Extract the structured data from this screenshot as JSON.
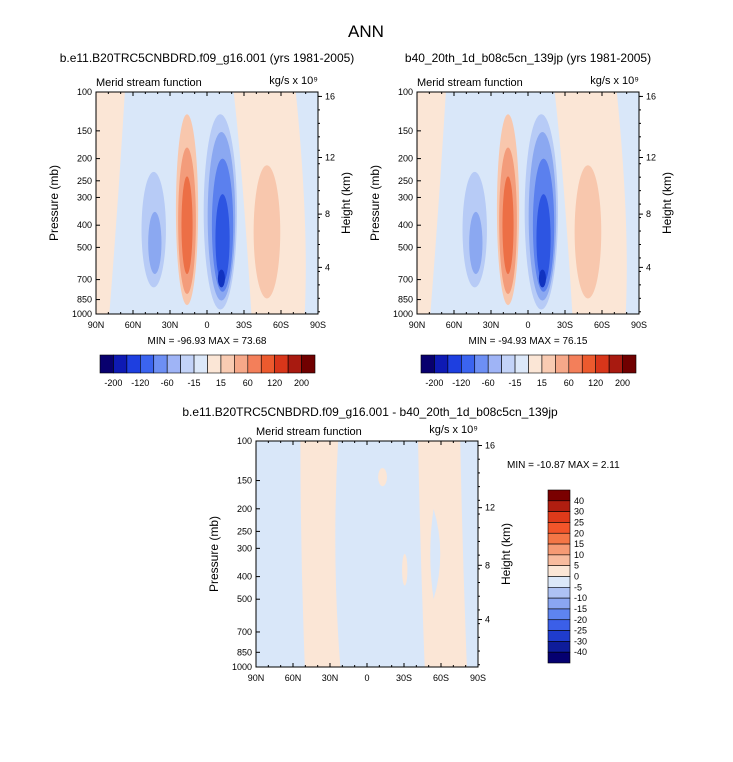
{
  "figure": {
    "title": "ANN"
  },
  "chart_data": [
    {
      "type": "heatmap",
      "title": "b.e11.B20TRC5CNBDRD.f09_g16.001 (yrs 1981-2005)",
      "subtitle_left": "Merid stream function",
      "units": "kg/s x 10⁹",
      "ylabel": "Pressure (mb)",
      "ylabel_right": "Height (km)",
      "x_ticks": [
        "90N",
        "60N",
        "30N",
        "0",
        "30S",
        "60S",
        "90S"
      ],
      "y_ticks": [
        "100",
        "150",
        "200",
        "250",
        "300",
        "400",
        "500",
        "700",
        "850",
        "1000"
      ],
      "y2_ticks": [
        "16",
        "12",
        "8",
        "4"
      ],
      "ylim": [
        1000,
        100
      ],
      "stats": "MIN = -96.93  MAX =  73.68",
      "min": -96.93,
      "max": 73.68,
      "levels": [
        -200,
        -120,
        -60,
        -15,
        15,
        60,
        120,
        200
      ],
      "colorbar": {
        "labels": [
          "-200",
          "-120",
          "-60",
          "-15",
          "15",
          "60",
          "120",
          "200"
        ],
        "colors": [
          "#08006e",
          "#0e1ab4",
          "#1e3fe0",
          "#3b64f0",
          "#6d8ff4",
          "#9fb4f6",
          "#c3d3f8",
          "#dce8f9",
          "#fbe6d6",
          "#f9cbb2",
          "#f6a889",
          "#f37f5a",
          "#ec5a2e",
          "#d8361a",
          "#a81a10",
          "#700000"
        ]
      }
    },
    {
      "type": "heatmap",
      "title": "b40_20th_1d_b08c5cn_139jp (yrs 1981-2005)",
      "subtitle_left": "Merid stream function",
      "units": "kg/s x 10⁹",
      "ylabel": "Pressure (mb)",
      "ylabel_right": "Height (km)",
      "x_ticks": [
        "90N",
        "60N",
        "30N",
        "0",
        "30S",
        "60S",
        "90S"
      ],
      "y_ticks": [
        "100",
        "150",
        "200",
        "250",
        "300",
        "400",
        "500",
        "700",
        "850",
        "1000"
      ],
      "y2_ticks": [
        "16",
        "12",
        "8",
        "4"
      ],
      "ylim": [
        1000,
        100
      ],
      "stats": "MIN = -94.93  MAX =  76.15",
      "min": -94.93,
      "max": 76.15,
      "levels": [
        -200,
        -120,
        -60,
        -15,
        15,
        60,
        120,
        200
      ],
      "colorbar": {
        "labels": [
          "-200",
          "-120",
          "-60",
          "-15",
          "15",
          "60",
          "120",
          "200"
        ],
        "colors": [
          "#08006e",
          "#0e1ab4",
          "#1e3fe0",
          "#3b64f0",
          "#6d8ff4",
          "#9fb4f6",
          "#c3d3f8",
          "#dce8f9",
          "#fbe6d6",
          "#f9cbb2",
          "#f6a889",
          "#f37f5a",
          "#ec5a2e",
          "#d8361a",
          "#a81a10",
          "#700000"
        ]
      }
    },
    {
      "type": "heatmap",
      "title": "b.e11.B20TRC5CNBDRD.f09_g16.001 - b40_20th_1d_b08c5cn_139jp",
      "subtitle_left": "Merid stream function",
      "units": "kg/s x 10⁹",
      "ylabel": "Pressure (mb)",
      "ylabel_right": "Height (km)",
      "x_ticks": [
        "90N",
        "60N",
        "30N",
        "0",
        "30S",
        "60S",
        "90S"
      ],
      "y_ticks": [
        "100",
        "150",
        "200",
        "250",
        "300",
        "400",
        "500",
        "700",
        "850",
        "1000"
      ],
      "y2_ticks": [
        "16",
        "12",
        "8",
        "4"
      ],
      "ylim": [
        1000,
        100
      ],
      "stats": "MIN = -10.87  MAX =   2.11",
      "min": -10.87,
      "max": 2.11,
      "levels": [
        -40,
        -30,
        -25,
        -20,
        -15,
        -10,
        -5,
        0,
        5,
        10,
        15,
        20,
        25,
        30,
        40
      ],
      "colorbar": {
        "labels": [
          "40",
          "30",
          "25",
          "20",
          "15",
          "10",
          "5",
          "0",
          "-5",
          "-10",
          "-15",
          "-20",
          "-25",
          "-30",
          "-40"
        ],
        "colors": [
          "#7a0000",
          "#b01e10",
          "#de3a1a",
          "#f2552a",
          "#f47646",
          "#f69a74",
          "#f8bb9e",
          "#fbe6d6",
          "#dce8f9",
          "#aec2f4",
          "#8aa6f2",
          "#5e84f0",
          "#3b5fe8",
          "#1f3ccd",
          "#0e1c9a",
          "#050070"
        ]
      }
    }
  ]
}
